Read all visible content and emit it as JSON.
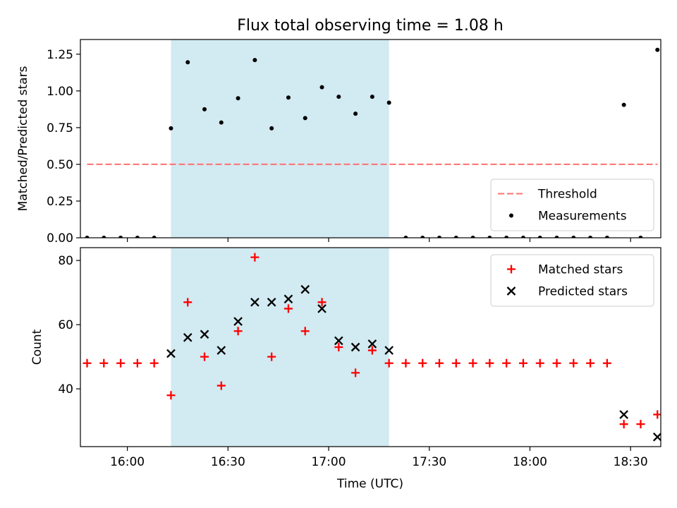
{
  "chart_data": {
    "type": "scatter",
    "title": "Flux total observing time = 1.08 h",
    "xlabel": "Time (UTC)",
    "x_unit": "UTC time",
    "xlim": [
      "15:46",
      "18:39"
    ],
    "xticks": [
      "16:00",
      "16:30",
      "17:00",
      "17:30",
      "18:00",
      "18:30"
    ],
    "highlight_span": {
      "start": "16:13",
      "end": "17:18",
      "color": "#add8e6"
    },
    "panels": [
      {
        "ylabel": "Matched/Predicted stars",
        "ylim": [
          0.0,
          1.35
        ],
        "yticks": [
          0.0,
          0.25,
          0.5,
          0.75,
          1.0,
          1.25
        ],
        "yticklabels": [
          "0.00",
          "0.25",
          "0.50",
          "0.75",
          "1.00",
          "1.25"
        ],
        "legend_position": "lower right",
        "series": [
          {
            "name": "Threshold",
            "kind": "line",
            "style": "dashed",
            "color": "#ff7070",
            "x": [
              "15:48",
              "18:38"
            ],
            "y": [
              0.5,
              0.5
            ]
          },
          {
            "name": "Measurements",
            "kind": "scatter",
            "marker": "dot",
            "color": "#000000",
            "x": [
              "15:48",
              "15:53",
              "15:58",
              "16:03",
              "16:08",
              "16:13",
              "16:18",
              "16:23",
              "16:28",
              "16:33",
              "16:38",
              "16:43",
              "16:48",
              "16:53",
              "16:58",
              "17:03",
              "17:08",
              "17:13",
              "17:18",
              "17:23",
              "17:28",
              "17:33",
              "17:38",
              "17:43",
              "17:48",
              "17:53",
              "17:58",
              "18:03",
              "18:08",
              "18:13",
              "18:18",
              "18:23",
              "18:28",
              "18:33",
              "18:38"
            ],
            "y": [
              0.0,
              0.0,
              0.0,
              0.0,
              0.0,
              0.745,
              1.195,
              0.875,
              0.785,
              0.95,
              1.21,
              0.745,
              0.955,
              0.815,
              1.025,
              0.96,
              0.845,
              0.96,
              0.92,
              0.0,
              0.0,
              0.0,
              0.0,
              0.0,
              0.0,
              0.0,
              0.0,
              0.0,
              0.0,
              0.0,
              0.0,
              0.0,
              0.905,
              0.0,
              1.28
            ]
          }
        ]
      },
      {
        "ylabel": "Count",
        "ylim": [
          22,
          84
        ],
        "yticks": [
          40,
          60,
          80
        ],
        "yticklabels": [
          "40",
          "60",
          "80"
        ],
        "legend_position": "upper right",
        "series": [
          {
            "name": "Matched stars",
            "kind": "scatter",
            "marker": "plus",
            "color": "#ff0000",
            "x": [
              "15:48",
              "15:53",
              "15:58",
              "16:03",
              "16:08",
              "16:13",
              "16:18",
              "16:23",
              "16:28",
              "16:33",
              "16:38",
              "16:43",
              "16:48",
              "16:53",
              "16:58",
              "17:03",
              "17:08",
              "17:13",
              "17:18",
              "17:23",
              "17:28",
              "17:33",
              "17:38",
              "17:43",
              "17:48",
              "17:53",
              "17:58",
              "18:03",
              "18:08",
              "18:13",
              "18:18",
              "18:23",
              "18:28",
              "18:33",
              "18:38"
            ],
            "y": [
              48,
              48,
              48,
              48,
              48,
              38,
              67,
              50,
              41,
              58,
              81,
              50,
              65,
              58,
              67,
              53,
              45,
              52,
              48,
              48,
              48,
              48,
              48,
              48,
              48,
              48,
              48,
              48,
              48,
              48,
              48,
              48,
              29,
              29,
              32
            ]
          },
          {
            "name": "Predicted stars",
            "kind": "scatter",
            "marker": "x",
            "color": "#000000",
            "x": [
              "16:13",
              "16:18",
              "16:23",
              "16:28",
              "16:33",
              "16:38",
              "16:43",
              "16:48",
              "16:53",
              "16:58",
              "17:03",
              "17:08",
              "17:13",
              "17:18",
              "18:28",
              "18:38"
            ],
            "y": [
              51,
              56,
              57,
              52,
              61,
              67,
              67,
              68,
              71,
              65,
              55,
              53,
              54,
              52,
              32,
              25
            ]
          }
        ]
      }
    ]
  }
}
